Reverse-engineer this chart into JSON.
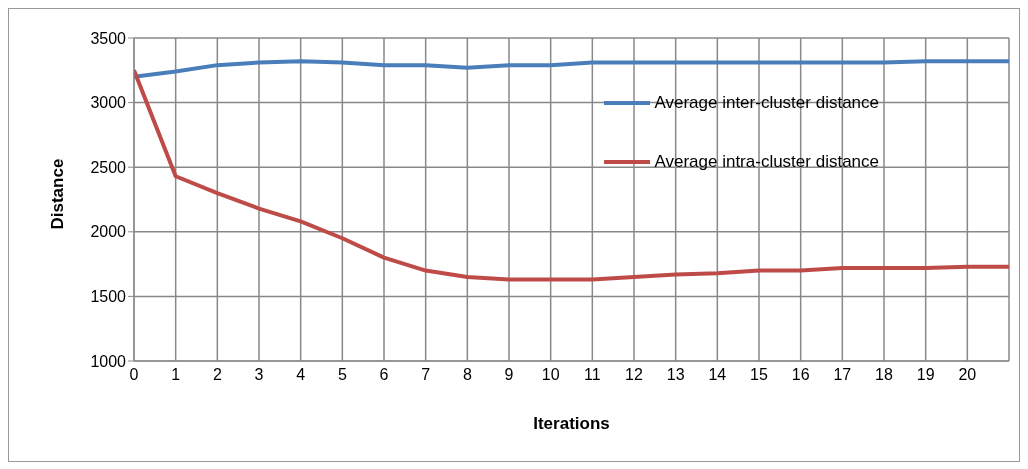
{
  "chart_data": {
    "type": "line",
    "xlabel": "Iterations",
    "ylabel": "Distance",
    "x": [
      0,
      1,
      2,
      3,
      4,
      5,
      6,
      7,
      8,
      9,
      10,
      11,
      12,
      13,
      14,
      15,
      16,
      17,
      18,
      19,
      20,
      21
    ],
    "series": [
      {
        "name": "Average inter-cluster distance",
        "color": "#4a7ebb",
        "values": [
          3200,
          3240,
          3290,
          3310,
          3320,
          3310,
          3290,
          3290,
          3270,
          3290,
          3290,
          3310,
          3310,
          3310,
          3310,
          3310,
          3310,
          3310,
          3310,
          3320,
          3320,
          3320
        ]
      },
      {
        "name": "Average intra-cluster distance",
        "color": "#be4b48",
        "values": [
          3250,
          2430,
          2300,
          2180,
          2080,
          1950,
          1800,
          1700,
          1650,
          1630,
          1630,
          1630,
          1650,
          1670,
          1680,
          1700,
          1700,
          1720,
          1720,
          1720,
          1730,
          1730
        ]
      }
    ],
    "xlim": [
      0,
      21
    ],
    "xticks": [
      0,
      1,
      2,
      3,
      4,
      5,
      6,
      7,
      8,
      9,
      10,
      11,
      12,
      13,
      14,
      15,
      16,
      17,
      18,
      19,
      20,
      {
        "value": 21,
        "label": null
      }
    ],
    "ylim": [
      1000,
      3500
    ],
    "yticks": [
      1000,
      1500,
      2000,
      2500,
      3000,
      3500
    ],
    "grid": true,
    "legend": "top right",
    "marker": "none",
    "line_style": "solid"
  }
}
